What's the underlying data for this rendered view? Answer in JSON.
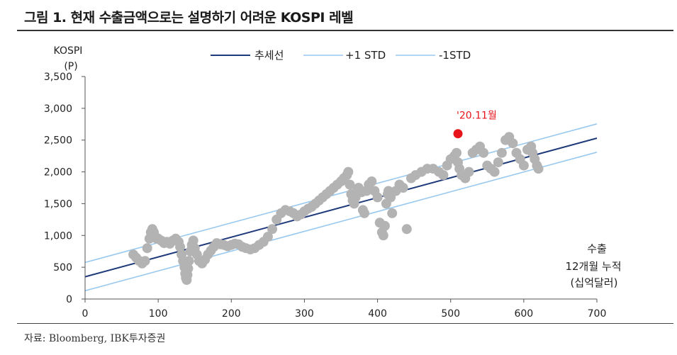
{
  "title": "그림 1. 현재 수출금액으로는 설명하기 어려운 KOSPI 레벨",
  "source": "자료: Bloomberg, IBK투자증권",
  "colors": {
    "trend": "#1f3a7a",
    "band": "#99c9ef",
    "dots": "#b3b3b3",
    "highlight": "#e8141b",
    "axis": "#555555"
  },
  "chart_data": {
    "type": "scatter",
    "title": "",
    "ylabel_lines": [
      "KOSPI",
      "(P)"
    ],
    "xlabel_lines": [
      "수출",
      "12개월  누적",
      "(십억달러)"
    ],
    "xlim": [
      0,
      700
    ],
    "ylim": [
      0,
      3500
    ],
    "x_ticks": [
      0,
      100,
      200,
      300,
      400,
      500,
      600,
      700
    ],
    "y_ticks": [
      0,
      500,
      1000,
      1500,
      2000,
      2500,
      3000,
      3500
    ],
    "x_tick_labels": [
      "0",
      "100",
      "200",
      "300",
      "400",
      "500",
      "600",
      "700"
    ],
    "y_tick_labels": [
      "0",
      "500",
      "1,000",
      "1,500",
      "2,000",
      "2,500",
      "3,000",
      "3,500"
    ],
    "grid": false,
    "legend": {
      "placement": "top",
      "entries": [
        {
          "label": "추세선",
          "color": "#1f3a7a"
        },
        {
          "label": "+1 STD",
          "color": "#99c9ef"
        },
        {
          "label": "-1STD",
          "color": "#99c9ef"
        }
      ]
    },
    "lines": [
      {
        "name": "추세선",
        "x": [
          0,
          700
        ],
        "y": [
          350,
          2530
        ]
      },
      {
        "name": "+1 STD",
        "x": [
          0,
          700
        ],
        "y": [
          575,
          2755
        ]
      },
      {
        "name": "-1STD",
        "x": [
          0,
          700
        ],
        "y": [
          130,
          2310
        ]
      }
    ],
    "highlight_point": {
      "label": "'20.11월",
      "x": 510,
      "y": 2600
    },
    "scatter": {
      "x": [
        66,
        70,
        74,
        78,
        82,
        85,
        88,
        90,
        92,
        94,
        96,
        98,
        100,
        104,
        108,
        112,
        116,
        120,
        124,
        128,
        130,
        132,
        134,
        136,
        137,
        138,
        139,
        140,
        141,
        142,
        144,
        146,
        148,
        150,
        153,
        156,
        160,
        164,
        168,
        172,
        176,
        180,
        185,
        190,
        195,
        200,
        205,
        210,
        215,
        220,
        226,
        232,
        238,
        244,
        250,
        256,
        262,
        268,
        274,
        280,
        285,
        290,
        295,
        300,
        305,
        310,
        315,
        320,
        325,
        330,
        335,
        340,
        345,
        350,
        354,
        358,
        360,
        362,
        364,
        366,
        368,
        370,
        372,
        374,
        378,
        380,
        382,
        385,
        388,
        392,
        396,
        400,
        403,
        406,
        408,
        410,
        412,
        414,
        415,
        418,
        420,
        425,
        430,
        435,
        440,
        446,
        452,
        460,
        468,
        476,
        484,
        490,
        495,
        500,
        505,
        508,
        510,
        512,
        515,
        520,
        525,
        530,
        535,
        540,
        545,
        550,
        555,
        560,
        565,
        570,
        575,
        580,
        585,
        590,
        595,
        600,
        605,
        610,
        612,
        615,
        618,
        620
      ],
      "y": [
        700,
        650,
        600,
        560,
        600,
        800,
        950,
        1050,
        1100,
        1050,
        980,
        950,
        950,
        920,
        880,
        900,
        870,
        920,
        950,
        900,
        820,
        700,
        600,
        500,
        400,
        330,
        300,
        380,
        480,
        600,
        750,
        850,
        920,
        800,
        700,
        600,
        560,
        620,
        700,
        760,
        820,
        880,
        860,
        850,
        830,
        850,
        870,
        860,
        820,
        800,
        780,
        800,
        850,
        900,
        980,
        1100,
        1250,
        1350,
        1400,
        1380,
        1350,
        1300,
        1330,
        1380,
        1420,
        1450,
        1500,
        1550,
        1600,
        1650,
        1700,
        1750,
        1800,
        1850,
        1900,
        1950,
        2000,
        1800,
        1650,
        1550,
        1500,
        1600,
        1700,
        1750,
        1680,
        1400,
        1350,
        1700,
        1800,
        1850,
        1700,
        1600,
        1200,
        1050,
        1000,
        1150,
        1500,
        1650,
        1700,
        1600,
        1350,
        1700,
        1800,
        1750,
        1100,
        1900,
        1950,
        2000,
        2050,
        2050,
        2000,
        1950,
        2100,
        2200,
        2250,
        2300,
        2150,
        2050,
        1950,
        1900,
        2000,
        2300,
        2350,
        2400,
        2300,
        2100,
        2050,
        2000,
        2150,
        2300,
        2500,
        2550,
        2450,
        2300,
        2200,
        2100,
        2350,
        2400,
        2300,
        2200,
        2100,
        2050
      ]
    }
  }
}
